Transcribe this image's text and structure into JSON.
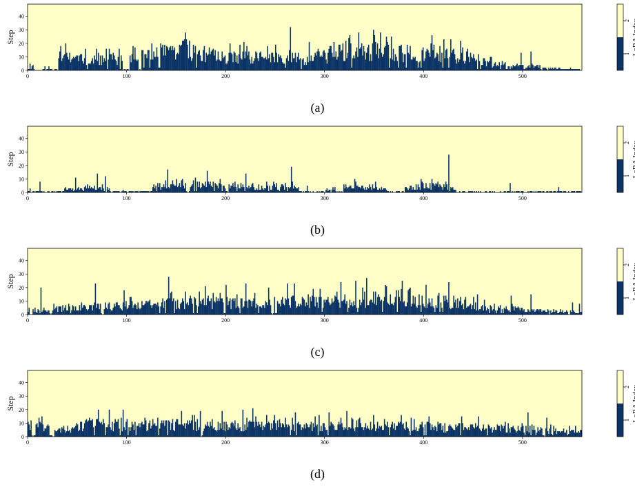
{
  "colors": {
    "background": "#ffffc8",
    "bar": "#0b3366",
    "axis": "#000000"
  },
  "chart_data": [
    {
      "type": "bar",
      "caption": "(a)",
      "ylabel": "Step",
      "xlim": [
        0,
        560
      ],
      "ylim": [
        0,
        49
      ],
      "xticks": [
        0,
        100,
        200,
        300,
        400,
        500
      ],
      "yticks": [
        0,
        10,
        20,
        30,
        40
      ],
      "colorbar": {
        "label": "LoRA Index",
        "ticks": [
          1,
          2
        ],
        "colors": [
          "#0b3366",
          "#ffffc8"
        ]
      },
      "profile": [
        [
          0,
          5
        ],
        [
          10,
          2
        ],
        [
          20,
          1
        ],
        [
          30,
          10
        ],
        [
          40,
          10
        ],
        [
          60,
          8
        ],
        [
          80,
          8
        ],
        [
          100,
          8
        ],
        [
          120,
          12
        ],
        [
          140,
          13
        ],
        [
          160,
          14
        ],
        [
          180,
          12
        ],
        [
          200,
          11
        ],
        [
          220,
          10
        ],
        [
          240,
          10
        ],
        [
          260,
          10
        ],
        [
          280,
          8
        ],
        [
          300,
          11
        ],
        [
          320,
          14
        ],
        [
          340,
          14
        ],
        [
          360,
          15
        ],
        [
          380,
          13
        ],
        [
          400,
          13
        ],
        [
          420,
          13
        ],
        [
          440,
          9
        ],
        [
          460,
          6
        ],
        [
          480,
          4
        ],
        [
          500,
          3
        ],
        [
          520,
          2
        ],
        [
          540,
          1
        ],
        [
          559,
          1
        ]
      ],
      "spikes": [
        [
          2,
          5
        ],
        [
          17,
          3
        ],
        [
          38,
          20
        ],
        [
          58,
          16
        ],
        [
          69,
          16
        ],
        [
          79,
          16
        ],
        [
          121,
          15
        ],
        [
          158,
          23
        ],
        [
          163,
          22
        ],
        [
          218,
          21
        ],
        [
          242,
          18
        ],
        [
          265,
          32
        ],
        [
          284,
          21
        ],
        [
          325,
          26
        ],
        [
          334,
          28
        ],
        [
          349,
          30
        ],
        [
          367,
          25
        ],
        [
          408,
          26
        ],
        [
          427,
          23
        ],
        [
          437,
          22
        ],
        [
          455,
          12
        ],
        [
          498,
          13
        ],
        [
          508,
          14
        ],
        [
          536,
          2
        ],
        [
          548,
          2
        ]
      ],
      "gaps": [
        [
          0,
          3
        ],
        [
          6,
          11
        ],
        [
          12,
          14
        ],
        [
          22,
          30
        ],
        [
          96,
          102
        ],
        [
          112,
          114
        ]
      ],
      "seed": 11
    },
    {
      "type": "bar",
      "caption": "(b)",
      "ylabel": "Step",
      "xlim": [
        0,
        560
      ],
      "ylim": [
        0,
        49
      ],
      "xticks": [
        0,
        100,
        200,
        300,
        400,
        500
      ],
      "yticks": [
        0,
        10,
        20,
        30,
        40
      ],
      "colorbar": {
        "label": "LoRA Index",
        "ticks": [
          1,
          2
        ],
        "colors": [
          "#0b3366",
          "#ffffc8"
        ]
      },
      "profile": [
        [
          0,
          1
        ],
        [
          40,
          2
        ],
        [
          60,
          4
        ],
        [
          80,
          3
        ],
        [
          100,
          1
        ],
        [
          130,
          4
        ],
        [
          150,
          5
        ],
        [
          170,
          6
        ],
        [
          190,
          6
        ],
        [
          210,
          6
        ],
        [
          230,
          4
        ],
        [
          250,
          4
        ],
        [
          265,
          6
        ],
        [
          280,
          1
        ],
        [
          300,
          2
        ],
        [
          320,
          4
        ],
        [
          340,
          4
        ],
        [
          360,
          2
        ],
        [
          380,
          3
        ],
        [
          400,
          5
        ],
        [
          420,
          5
        ],
        [
          440,
          1
        ],
        [
          480,
          1
        ],
        [
          500,
          1
        ],
        [
          559,
          0
        ]
      ],
      "spikes": [
        [
          2,
          3
        ],
        [
          12,
          8
        ],
        [
          48,
          11
        ],
        [
          70,
          14
        ],
        [
          78,
          12
        ],
        [
          141,
          17
        ],
        [
          181,
          16
        ],
        [
          220,
          14
        ],
        [
          266,
          19
        ],
        [
          282,
          5
        ],
        [
          330,
          10
        ],
        [
          351,
          8
        ],
        [
          397,
          10
        ],
        [
          425,
          28
        ],
        [
          487,
          7
        ],
        [
          536,
          4
        ]
      ],
      "gaps": [
        [
          3,
          10
        ],
        [
          15,
          35
        ],
        [
          83,
          95
        ],
        [
          98,
          125
        ],
        [
          160,
          162
        ],
        [
          200,
          202
        ],
        [
          274,
          300
        ],
        [
          312,
          318
        ],
        [
          364,
          380
        ],
        [
          434,
          559
        ]
      ],
      "seed": 23
    },
    {
      "type": "bar",
      "caption": "(c)",
      "ylabel": "Step",
      "xlim": [
        0,
        560
      ],
      "ylim": [
        0,
        49
      ],
      "xticks": [
        0,
        100,
        200,
        300,
        400,
        500
      ],
      "yticks": [
        0,
        10,
        20,
        30,
        40
      ],
      "colorbar": {
        "label": "LoRA Index",
        "ticks": [
          1,
          2
        ],
        "colors": [
          "#0b3366",
          "#ffffc8"
        ]
      },
      "profile": [
        [
          0,
          3
        ],
        [
          20,
          4
        ],
        [
          40,
          5
        ],
        [
          60,
          6
        ],
        [
          80,
          6
        ],
        [
          100,
          7
        ],
        [
          120,
          8
        ],
        [
          140,
          9
        ],
        [
          160,
          9
        ],
        [
          180,
          9
        ],
        [
          200,
          9
        ],
        [
          220,
          9
        ],
        [
          240,
          9
        ],
        [
          260,
          10
        ],
        [
          280,
          10
        ],
        [
          300,
          10
        ],
        [
          320,
          11
        ],
        [
          340,
          11
        ],
        [
          360,
          11
        ],
        [
          380,
          10
        ],
        [
          400,
          10
        ],
        [
          420,
          10
        ],
        [
          440,
          8
        ],
        [
          460,
          6
        ],
        [
          480,
          5
        ],
        [
          500,
          4
        ],
        [
          520,
          3
        ],
        [
          540,
          2
        ],
        [
          559,
          2
        ]
      ],
      "spikes": [
        [
          13,
          20
        ],
        [
          68,
          23
        ],
        [
          97,
          18
        ],
        [
          142,
          28
        ],
        [
          179,
          21
        ],
        [
          200,
          22
        ],
        [
          220,
          23
        ],
        [
          243,
          20
        ],
        [
          262,
          23
        ],
        [
          269,
          23
        ],
        [
          316,
          24
        ],
        [
          331,
          25
        ],
        [
          342,
          27
        ],
        [
          361,
          22
        ],
        [
          378,
          25
        ],
        [
          402,
          22
        ],
        [
          425,
          24
        ],
        [
          454,
          15
        ],
        [
          488,
          14
        ],
        [
          508,
          15
        ],
        [
          550,
          9
        ],
        [
          557,
          8
        ]
      ],
      "gaps": [
        [
          2,
          4
        ],
        [
          22,
          24
        ],
        [
          74,
          76
        ],
        [
          198,
          200
        ],
        [
          246,
          248
        ]
      ],
      "seed": 37
    },
    {
      "type": "bar",
      "caption": "(d)",
      "ylabel": "Step",
      "xlim": [
        0,
        560
      ],
      "ylim": [
        0,
        49
      ],
      "xticks": [
        0,
        100,
        200,
        300,
        400,
        500
      ],
      "yticks": [
        0,
        10,
        20,
        30,
        40
      ],
      "colorbar": {
        "label": "LoRA Index",
        "ticks": [
          1,
          2
        ],
        "colors": [
          "#0b3366",
          "#ffffc8"
        ]
      },
      "profile": [
        [
          0,
          8
        ],
        [
          20,
          7
        ],
        [
          40,
          6
        ],
        [
          60,
          9
        ],
        [
          80,
          9
        ],
        [
          100,
          8
        ],
        [
          120,
          8
        ],
        [
          140,
          9
        ],
        [
          160,
          9
        ],
        [
          180,
          9
        ],
        [
          200,
          8
        ],
        [
          220,
          9
        ],
        [
          240,
          8
        ],
        [
          260,
          8
        ],
        [
          280,
          8
        ],
        [
          300,
          8
        ],
        [
          320,
          9
        ],
        [
          340,
          9
        ],
        [
          360,
          8
        ],
        [
          380,
          8
        ],
        [
          400,
          8
        ],
        [
          420,
          7
        ],
        [
          440,
          7
        ],
        [
          460,
          7
        ],
        [
          480,
          6
        ],
        [
          500,
          6
        ],
        [
          520,
          5
        ],
        [
          540,
          4
        ],
        [
          559,
          4
        ]
      ],
      "spikes": [
        [
          14,
          15
        ],
        [
          71,
          20
        ],
        [
          82,
          20
        ],
        [
          96,
          20
        ],
        [
          155,
          19
        ],
        [
          174,
          19
        ],
        [
          196,
          19
        ],
        [
          217,
          20
        ],
        [
          227,
          21
        ],
        [
          249,
          16
        ],
        [
          270,
          18
        ],
        [
          304,
          18
        ],
        [
          322,
          19
        ],
        [
          349,
          16
        ],
        [
          377,
          16
        ],
        [
          405,
          15
        ],
        [
          438,
          15
        ],
        [
          455,
          15
        ],
        [
          505,
          18
        ],
        [
          524,
          14
        ],
        [
          553,
          8
        ]
      ],
      "gaps": [
        [
          4,
          7
        ],
        [
          22,
          26
        ],
        [
          174,
          176
        ],
        [
          303,
          304
        ],
        [
          520,
          522
        ]
      ],
      "seed": 53
    }
  ]
}
